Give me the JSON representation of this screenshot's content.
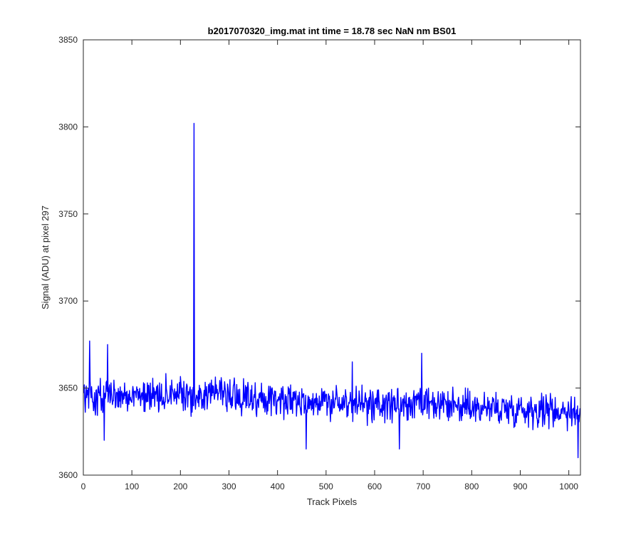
{
  "chart_data": {
    "type": "line",
    "title": "b2017070320_img.mat int time = 18.78 sec  NaN nm BS01",
    "xlabel": "Track Pixels",
    "ylabel": "Signal (ADU) at pixel 297",
    "xlim": [
      0,
      1024
    ],
    "ylim": [
      3600,
      3850
    ],
    "xticks": [
      0,
      100,
      200,
      300,
      400,
      500,
      600,
      700,
      800,
      900,
      1000
    ],
    "yticks": [
      3600,
      3650,
      3700,
      3750,
      3800,
      3850
    ],
    "grid": false,
    "legend": "none",
    "series_color": "#0000ff",
    "series": [
      {
        "baseline": [
          [
            0,
            3646
          ],
          [
            100,
            3646
          ],
          [
            200,
            3646
          ],
          [
            300,
            3645
          ],
          [
            400,
            3644
          ],
          [
            500,
            3642
          ],
          [
            600,
            3640
          ],
          [
            700,
            3640
          ],
          [
            800,
            3639
          ],
          [
            900,
            3638
          ],
          [
            1000,
            3637
          ],
          [
            1024,
            3636
          ]
        ],
        "noise_amplitude": 9,
        "features": [
          {
            "x": 13,
            "y": 3677
          },
          {
            "x": 43,
            "y": 3620
          },
          {
            "x": 50,
            "y": 3675
          },
          {
            "x": 228,
            "y": 3802
          },
          {
            "x": 459,
            "y": 3615
          },
          {
            "x": 554,
            "y": 3665
          },
          {
            "x": 651,
            "y": 3615
          },
          {
            "x": 697,
            "y": 3670
          },
          {
            "x": 1019,
            "y": 3610
          }
        ]
      }
    ]
  }
}
